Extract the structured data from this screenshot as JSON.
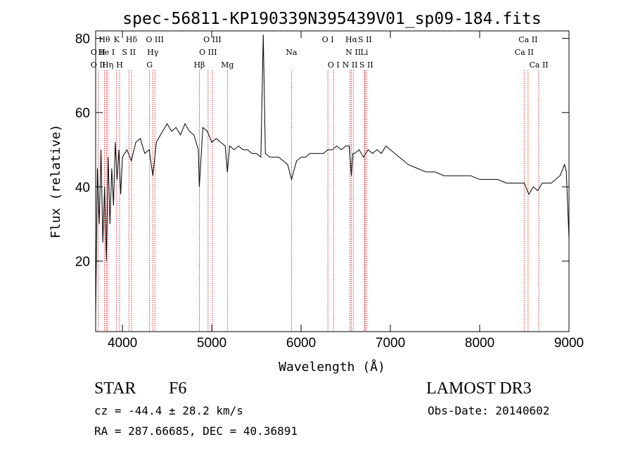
{
  "chart_data": {
    "type": "line",
    "title": "spec-56811-KP190339N395439V01_sp09-184.fits",
    "xlabel": "Wavelength (Å)",
    "ylabel": "Flux (relative)",
    "xlim": [
      3700,
      9000
    ],
    "ylim": [
      1,
      82
    ],
    "xticks": [
      4000,
      5000,
      6000,
      7000,
      8000,
      9000
    ],
    "yticks": [
      20,
      40,
      60,
      80
    ],
    "grid": false,
    "line_color": "#000000",
    "marker_color": "#cc0000",
    "series": [
      {
        "name": "flux",
        "x": [
          3700,
          3720,
          3740,
          3760,
          3780,
          3800,
          3820,
          3840,
          3860,
          3880,
          3900,
          3920,
          3940,
          3960,
          3980,
          4000,
          4050,
          4100,
          4150,
          4200,
          4250,
          4300,
          4340,
          4380,
          4450,
          4500,
          4550,
          4600,
          4650,
          4700,
          4750,
          4800,
          4850,
          4861,
          4900,
          4950,
          5000,
          5050,
          5100,
          5150,
          5175,
          5200,
          5250,
          5300,
          5350,
          5400,
          5450,
          5500,
          5550,
          5577,
          5600,
          5650,
          5700,
          5750,
          5800,
          5850,
          5893,
          5950,
          6000,
          6050,
          6100,
          6150,
          6200,
          6250,
          6300,
          6350,
          6400,
          6450,
          6500,
          6540,
          6563,
          6580,
          6600,
          6650,
          6700,
          6750,
          6800,
          6850,
          6900,
          6950,
          7000,
          7050,
          7100,
          7150,
          7200,
          7300,
          7400,
          7500,
          7600,
          7700,
          7800,
          7900,
          8000,
          8100,
          8200,
          8300,
          8400,
          8500,
          8550,
          8600,
          8650,
          8700,
          8750,
          8800,
          8850,
          8900,
          8950,
          8970,
          9000
        ],
        "y": [
          5,
          45,
          30,
          50,
          25,
          40,
          20,
          48,
          30,
          45,
          35,
          52,
          42,
          50,
          38,
          48,
          50,
          47,
          52,
          53,
          49,
          50,
          43,
          52,
          55,
          57,
          55,
          56,
          54,
          57,
          55,
          54,
          50,
          40,
          56,
          55,
          52,
          53,
          52,
          51,
          44,
          51,
          50,
          51,
          50,
          50,
          49,
          49,
          48,
          81,
          49,
          48,
          48,
          48,
          47,
          46,
          42,
          47,
          48,
          48,
          49,
          49,
          49,
          49,
          50,
          50,
          51,
          50,
          51,
          51,
          43,
          49,
          49,
          50,
          48,
          50,
          49,
          50,
          49,
          51,
          50,
          49,
          48,
          47,
          46,
          45,
          44,
          44,
          43,
          43,
          43,
          43,
          42,
          42,
          42,
          41,
          41,
          41,
          38,
          40,
          39,
          41,
          41,
          41,
          42,
          43,
          46,
          44,
          26
        ]
      }
    ],
    "line_markers": [
      {
        "label": "O II",
        "wavelength": 3727,
        "row": 1
      },
      {
        "label": "O II",
        "wavelength": 3727,
        "row": 2
      },
      {
        "label": "Hθ",
        "wavelength": 3798,
        "row": 0
      },
      {
        "label": "He I",
        "wavelength": 3820,
        "row": 1
      },
      {
        "label": "Hη",
        "wavelength": 3835,
        "row": 2
      },
      {
        "label": "K",
        "wavelength": 3934,
        "row": 0
      },
      {
        "label": "S II",
        "wavelength": 4072,
        "row": 1
      },
      {
        "label": "H",
        "wavelength": 3968,
        "row": 2
      },
      {
        "label": "Hδ",
        "wavelength": 4102,
        "row": 0
      },
      {
        "label": "O III",
        "wavelength": 4363,
        "row": 0
      },
      {
        "label": "Hγ",
        "wavelength": 4340,
        "row": 1
      },
      {
        "label": "G",
        "wavelength": 4304,
        "row": 2
      },
      {
        "label": "Hβ",
        "wavelength": 4861,
        "row": 2
      },
      {
        "label": "O III",
        "wavelength": 5007,
        "row": 0
      },
      {
        "label": "O III",
        "wavelength": 4959,
        "row": 1
      },
      {
        "label": "Mg",
        "wavelength": 5175,
        "row": 2
      },
      {
        "label": "Na",
        "wavelength": 5893,
        "row": 1
      },
      {
        "label": "O I",
        "wavelength": 6300,
        "row": 0
      },
      {
        "label": "O I",
        "wavelength": 6364,
        "row": 2
      },
      {
        "label": "Hα",
        "wavelength": 6563,
        "row": 0
      },
      {
        "label": "N II",
        "wavelength": 6584,
        "row": 1
      },
      {
        "label": "N II",
        "wavelength": 6548,
        "row": 2
      },
      {
        "label": "S II",
        "wavelength": 6716,
        "row": 0
      },
      {
        "label": "Li",
        "wavelength": 6708,
        "row": 1
      },
      {
        "label": "S II",
        "wavelength": 6731,
        "row": 2
      },
      {
        "label": "Ca II",
        "wavelength": 8542,
        "row": 0
      },
      {
        "label": "Ca II",
        "wavelength": 8498,
        "row": 1
      },
      {
        "label": "Ca II",
        "wavelength": 8662,
        "row": 2
      }
    ]
  },
  "info": {
    "object_class": "STAR",
    "subclass": "F6",
    "survey": "LAMOST DR3",
    "cz": "cz = -44.4 ± 28.2 km/s",
    "obs_date": "Obs-Date: 20140602",
    "coords": "RA = 287.66685, DEC =  40.36891"
  }
}
